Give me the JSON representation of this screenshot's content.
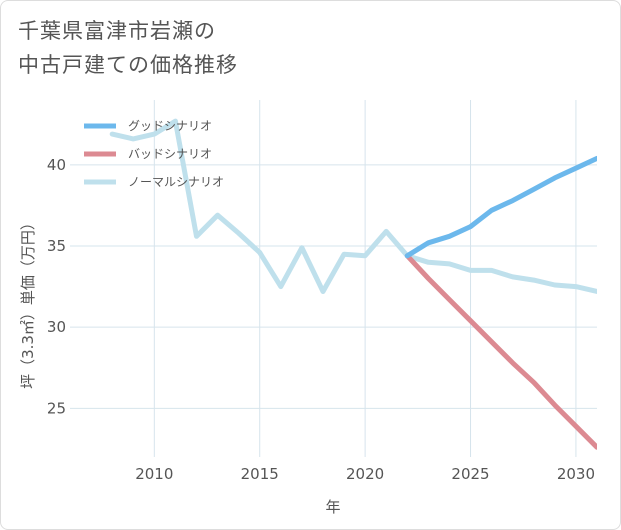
{
  "title": {
    "line1": "千葉県富津市岩瀬の",
    "line2": "中古戸建ての価格推移"
  },
  "colors": {
    "good": "#6cb8ec",
    "bad": "#dc8a92",
    "normal": "#bfe0ec",
    "grid": "#d6e4ec",
    "plot_bg": "#ffffff"
  },
  "chart_data": {
    "type": "line",
    "title": "千葉県富津市岩瀬の中古戸建ての価格推移",
    "xlabel": "年",
    "ylabel": "坪（3.3㎡）単価（万円）",
    "xlim": [
      2006,
      2031
    ],
    "ylim": [
      22,
      44
    ],
    "grid": true,
    "legend_position": "top-left",
    "xticks": [
      2010,
      2015,
      2020,
      2025,
      2030
    ],
    "yticks": [
      25,
      30,
      35,
      40
    ],
    "series": [
      {
        "name": "グッドシナリオ",
        "key": "good",
        "x": [
          2022,
          2023,
          2024,
          2025,
          2026,
          2027,
          2028,
          2029,
          2030,
          2031
        ],
        "y": [
          34.4,
          35.2,
          35.6,
          36.2,
          37.2,
          37.8,
          38.5,
          39.2,
          39.8,
          40.4
        ]
      },
      {
        "name": "バッドシナリオ",
        "key": "bad",
        "x": [
          2022,
          2023,
          2024,
          2025,
          2026,
          2027,
          2028,
          2029,
          2030,
          2031
        ],
        "y": [
          34.4,
          33.0,
          31.7,
          30.4,
          29.1,
          27.8,
          26.6,
          25.2,
          23.9,
          22.6
        ]
      },
      {
        "name": "ノーマルシナリオ",
        "key": "normal",
        "x": [
          2008,
          2009,
          2010,
          2011,
          2012,
          2013,
          2014,
          2015,
          2016,
          2017,
          2018,
          2019,
          2020,
          2021,
          2022,
          2023,
          2024,
          2025,
          2026,
          2027,
          2028,
          2029,
          2030,
          2031
        ],
        "y": [
          41.9,
          41.6,
          41.9,
          42.7,
          35.6,
          36.9,
          35.8,
          34.6,
          32.5,
          34.9,
          32.2,
          34.5,
          34.4,
          35.9,
          34.4,
          34.0,
          33.9,
          33.5,
          33.5,
          33.1,
          32.9,
          32.6,
          32.5,
          32.2
        ]
      }
    ]
  }
}
